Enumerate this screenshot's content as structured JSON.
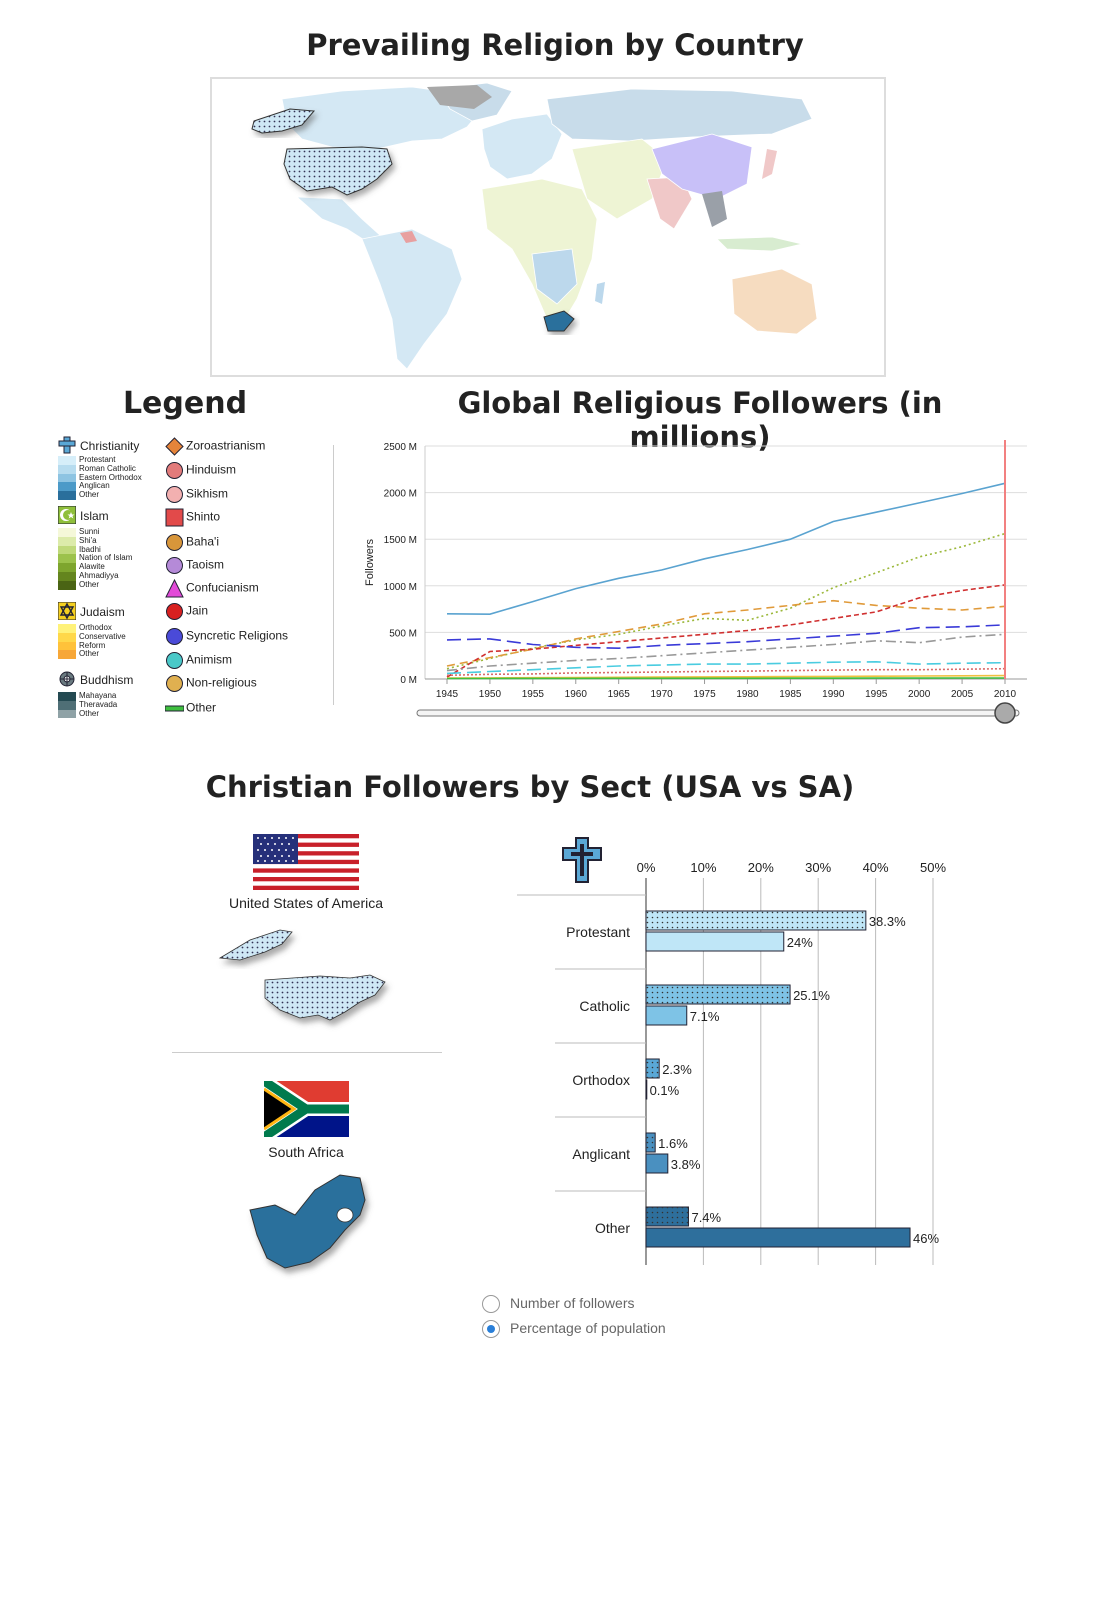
{
  "map": {
    "title": "Prevailing Religion by Country"
  },
  "legend": {
    "title": "Legend",
    "groups": [
      {
        "name": "Christianity",
        "icon": "christian-cross-icon",
        "subs": [
          "Protestant",
          "Roman Catholic",
          "Eastern Orthodox",
          "Anglican",
          "Other"
        ],
        "colors": [
          "#d6eef9",
          "#b7dcef",
          "#8ec4e2",
          "#4c9ac8",
          "#2a6f9c"
        ]
      },
      {
        "name": "Islam",
        "icon": "star-crescent-icon",
        "subs": [
          "Sunni",
          "Shi'a",
          "Ibadhi",
          "Nation of Islam",
          "Alawite",
          "Ahmadiyya",
          "Other"
        ],
        "colors": [
          "#f5f8d9",
          "#dcebaa",
          "#bfd97a",
          "#9cc24c",
          "#7ea52e",
          "#64851e",
          "#4a6414"
        ]
      },
      {
        "name": "Judaism",
        "icon": "star-of-david-icon",
        "subs": [
          "Orthodox",
          "Conservative",
          "Reform",
          "Other"
        ],
        "colors": [
          "#fff27a",
          "#ffd84a",
          "#ffc23a",
          "#f7a738"
        ]
      },
      {
        "name": "Buddhism",
        "icon": "dharma-wheel-icon",
        "subs": [
          "Mahayana",
          "Theravada",
          "Other"
        ],
        "colors": [
          "#244a52",
          "#4f6f76",
          "#8fa2a6"
        ]
      }
    ],
    "religions": [
      {
        "name": "Zoroastrianism",
        "icon": "faravahar-icon",
        "color": "#e5843a"
      },
      {
        "name": "Hinduism",
        "icon": "om-icon",
        "color": "#e27b7b"
      },
      {
        "name": "Sikhism",
        "icon": "khanda-icon",
        "color": "#f2b0b0"
      },
      {
        "name": "Shinto",
        "icon": "torii-icon",
        "color": "#e24a4a"
      },
      {
        "name": "Baha'i",
        "icon": "nine-star-icon",
        "color": "#d8963a"
      },
      {
        "name": "Taoism",
        "icon": "yin-yang-icon",
        "color": "#b58ad8"
      },
      {
        "name": "Confucianism",
        "icon": "confucian-symbol-icon",
        "color": "#e24ad8"
      },
      {
        "name": "Jain",
        "icon": "jain-hand-icon",
        "color": "#d82020"
      },
      {
        "name": "Syncretic Religions",
        "icon": "syncretic-icon",
        "color": "#4a4ad8"
      },
      {
        "name": "Animism",
        "icon": "eye-icon",
        "color": "#4ac8c8"
      },
      {
        "name": "Non-religious",
        "icon": "question-mark-icon",
        "color": "#e0b050"
      },
      {
        "name": "Other",
        "icon": "dots-icon",
        "color": "#3fbf3f"
      }
    ]
  },
  "line_chart": {
    "title": "Global Religious Followers (in millions)",
    "slider_value": 2010
  },
  "bar_chart": {
    "title": "Christian Followers by Sect (USA vs SA)",
    "usa_label": "United States of America",
    "sa_label": "South Africa",
    "radio_options": [
      "Number of followers",
      "Percentage of population"
    ],
    "radio_selected": 1
  },
  "chart_data": [
    {
      "type": "line",
      "title": "Global Religious Followers (in millions)",
      "ylabel": "Followers",
      "x": [
        1945,
        1950,
        1955,
        1960,
        1965,
        1970,
        1975,
        1980,
        1985,
        1990,
        1995,
        2000,
        2005,
        2010
      ],
      "xticks": [
        "1945",
        "1950",
        "1955",
        "1960",
        "1965",
        "1970",
        "1975",
        "1980",
        "1985",
        "1990",
        "1995",
        "2000",
        "2005",
        "2010"
      ],
      "ylim": [
        0,
        2500
      ],
      "yticks": [
        "0 M",
        "500 M",
        "1000 M",
        "1500 M",
        "2000 M",
        "2500 M"
      ],
      "grid": true,
      "series": [
        {
          "color": "#5aa3d0",
          "dash": "",
          "values": [
            700,
            695,
            830,
            970,
            1080,
            1170,
            1290,
            1390,
            1500,
            1690,
            1790,
            1890,
            1990,
            2100
          ]
        },
        {
          "color": "#9bb83a",
          "dash": "2,3",
          "values": [
            110,
            220,
            330,
            420,
            480,
            570,
            650,
            630,
            760,
            980,
            1140,
            1310,
            1420,
            1560
          ]
        },
        {
          "color": "#e09a3a",
          "dash": "8,5",
          "values": [
            140,
            230,
            320,
            430,
            510,
            590,
            700,
            740,
            790,
            840,
            790,
            760,
            740,
            780
          ]
        },
        {
          "color": "#d03030",
          "dash": "5,3",
          "values": [
            20,
            295,
            320,
            360,
            400,
            440,
            480,
            520,
            580,
            650,
            720,
            870,
            950,
            1010
          ]
        },
        {
          "color": "#3a3ad8",
          "dash": "14,6",
          "values": [
            420,
            430,
            370,
            340,
            330,
            360,
            380,
            400,
            430,
            460,
            490,
            550,
            560,
            580
          ]
        },
        {
          "color": "#999999",
          "dash": "10,4,2,4",
          "values": [
            90,
            140,
            170,
            200,
            220,
            250,
            280,
            310,
            340,
            370,
            410,
            390,
            450,
            480
          ]
        },
        {
          "color": "#4acce0",
          "dash": "14,6",
          "values": [
            60,
            80,
            100,
            120,
            140,
            150,
            160,
            160,
            170,
            180,
            185,
            160,
            170,
            175
          ]
        },
        {
          "color": "#d86a6a",
          "dash": "2,2",
          "values": [
            40,
            50,
            55,
            65,
            70,
            75,
            80,
            85,
            90,
            95,
            100,
            100,
            105,
            110
          ]
        },
        {
          "color": "#f0c040",
          "dash": "",
          "values": [
            10,
            12,
            14,
            16,
            18,
            20,
            22,
            24,
            26,
            28,
            30,
            32,
            34,
            36
          ]
        },
        {
          "color": "#3fbf3f",
          "dash": "",
          "values": [
            5,
            5,
            6,
            6,
            7,
            7,
            8,
            8,
            9,
            9,
            10,
            10,
            11,
            11
          ]
        }
      ]
    },
    {
      "type": "bar",
      "title": "Christian Followers by Sect (USA vs SA)",
      "categories": [
        "Protestant",
        "Catholic",
        "Orthodox",
        "Anglicant",
        "Other"
      ],
      "xticks": [
        "0%",
        "10%",
        "20%",
        "30%",
        "40%",
        "50%"
      ],
      "xlim": [
        0,
        50
      ],
      "series": [
        {
          "name": "United States of America",
          "values": [
            38.3,
            25.1,
            2.3,
            1.6,
            7.4
          ],
          "labels": [
            "38.3%",
            "25.1%",
            "2.3%",
            "1.6%",
            "7.4%"
          ],
          "colors": [
            "#bfe6f7",
            "#7ec3e6",
            "#5aa8d6",
            "#4a90c0",
            "#2e6f9c"
          ],
          "pattern": "dots"
        },
        {
          "name": "South Africa",
          "values": [
            24,
            7.1,
            0.1,
            3.8,
            46
          ],
          "labels": [
            "24%",
            "7.1%",
            "0.1%",
            "3.8%",
            "46%"
          ],
          "colors": [
            "#bfe6f7",
            "#7ec3e6",
            "#5aa8d6",
            "#4a90c0",
            "#2e6f9c"
          ],
          "pattern": "solid"
        }
      ]
    }
  ]
}
